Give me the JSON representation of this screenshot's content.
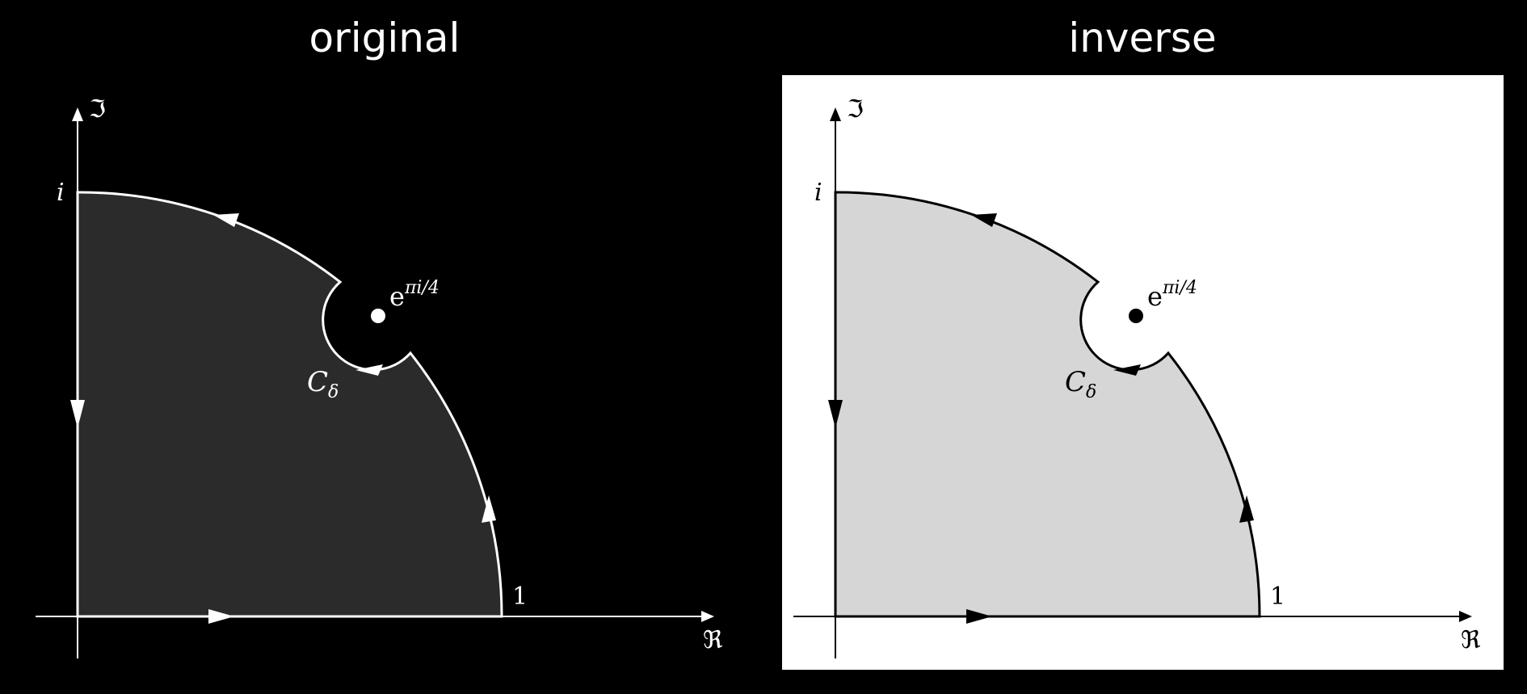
{
  "panels": [
    {
      "id": "original",
      "title": "original",
      "colors": {
        "background": "#000000",
        "fill": "#2b2b2b",
        "stroke": "#ffffff",
        "text": "#ffffff"
      },
      "labels": {
        "imag_axis": "ℑ",
        "real_axis": "ℜ",
        "i": "i",
        "one": "1",
        "pole_base": "e",
        "pole_exp": "πi/4",
        "contour_base": "C",
        "contour_sub": "δ"
      }
    },
    {
      "id": "inverse",
      "title": "inverse",
      "colors": {
        "background": "#ffffff",
        "fill": "#d6d6d6",
        "stroke": "#000000",
        "text": "#000000"
      },
      "labels": {
        "imag_axis": "ℑ",
        "real_axis": "ℜ",
        "i": "i",
        "one": "1",
        "pole_base": "e",
        "pole_exp": "πi/4",
        "contour_base": "C",
        "contour_sub": "δ"
      }
    }
  ]
}
